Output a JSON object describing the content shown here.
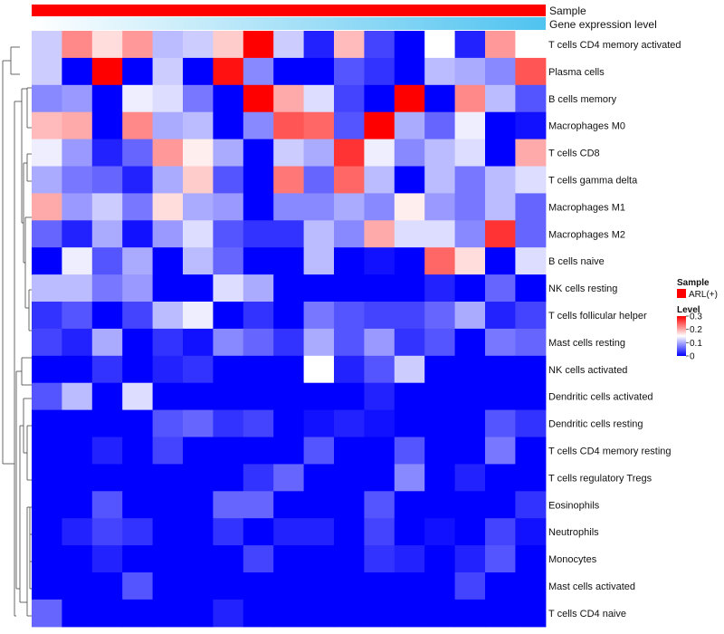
{
  "chart_data": {
    "type": "heatmap",
    "annotations": {
      "sample": {
        "label": "Sample",
        "color": "#ff0000"
      },
      "gene": {
        "label": "Gene expression level",
        "color_low": "#ffffff",
        "color_high": "#4fc3f0"
      }
    },
    "legend": {
      "sample_title": "Sample",
      "sample_entry": "ARL(+)",
      "sample_color": "#ff0000",
      "level_title": "Level",
      "ticks": [
        {
          "value": 0.3,
          "label": "0.3"
        },
        {
          "value": 0.2,
          "label": "0.2"
        },
        {
          "value": 0.1,
          "label": "0.1"
        },
        {
          "value": 0,
          "label": "0"
        }
      ]
    },
    "colors": {
      "low": "#0000ff",
      "mid": "#ffffff",
      "high": "#ff0000"
    },
    "value_range": [
      0,
      0.3
    ],
    "rows": [
      "T cells CD4 memory activated",
      "Plasma cells",
      "B cells memory",
      "Macrophages M0",
      "T cells CD8",
      "T cells gamma delta",
      "Macrophages M1",
      "Macrophages M2",
      "B cells naive",
      "NK cells resting",
      "T cells follicular helper",
      "Mast cells resting",
      "NK cells activated",
      "Dendritic cells activated",
      "Dendritic cells resting",
      "T cells CD4 memory resting",
      "T cells regulatory  Tregs",
      "Eosinophils",
      "Neutrophils",
      "Monocytes",
      "Mast cells activated",
      "T cells CD4 naive"
    ],
    "values": [
      [
        0.12,
        0.22,
        0.17,
        0.21,
        0.11,
        0.12,
        0.18,
        0.3,
        0.12,
        0.02,
        0.19,
        0.04,
        0.0,
        0.15,
        0.02,
        0.21,
        0.15
      ],
      [
        0.12,
        0.0,
        0.3,
        0.0,
        0.12,
        0.0,
        0.29,
        0.08,
        0.0,
        0.0,
        0.05,
        0.03,
        0.0,
        0.11,
        0.1,
        0.08,
        0.25
      ],
      [
        0.08,
        0.09,
        0.0,
        0.14,
        0.13,
        0.07,
        0.0,
        0.3,
        0.2,
        0.13,
        0.04,
        0.0,
        0.3,
        0.0,
        0.22,
        0.11,
        0.05
      ],
      [
        0.19,
        0.2,
        0.0,
        0.22,
        0.1,
        0.11,
        0.0,
        0.08,
        0.25,
        0.24,
        0.05,
        0.3,
        0.1,
        0.06,
        0.14,
        0.0,
        0.01
      ],
      [
        0.14,
        0.09,
        0.02,
        0.06,
        0.21,
        0.16,
        0.1,
        0.0,
        0.12,
        0.1,
        0.27,
        0.14,
        0.08,
        0.11,
        0.13,
        0.0,
        0.2
      ],
      [
        0.1,
        0.07,
        0.06,
        0.02,
        0.1,
        0.18,
        0.05,
        0.0,
        0.23,
        0.06,
        0.24,
        0.11,
        0.0,
        0.11,
        0.07,
        0.11,
        0.13
      ],
      [
        0.2,
        0.09,
        0.12,
        0.07,
        0.17,
        0.1,
        0.09,
        0.0,
        0.08,
        0.08,
        0.1,
        0.08,
        0.16,
        0.09,
        0.07,
        0.11,
        0.06
      ],
      [
        0.06,
        0.02,
        0.1,
        0.01,
        0.09,
        0.13,
        0.05,
        0.03,
        0.03,
        0.11,
        0.08,
        0.2,
        0.13,
        0.13,
        0.08,
        0.27,
        0.06
      ],
      [
        0.0,
        0.14,
        0.05,
        0.1,
        0.0,
        0.11,
        0.06,
        0.0,
        0.0,
        0.11,
        0.0,
        0.01,
        0.0,
        0.24,
        0.17,
        0.0,
        0.13
      ],
      [
        0.11,
        0.11,
        0.07,
        0.09,
        0.0,
        0.0,
        0.13,
        0.1,
        0.0,
        0.0,
        0.0,
        0.0,
        0.0,
        0.02,
        0.0,
        0.06,
        0.0
      ],
      [
        0.03,
        0.05,
        0.0,
        0.04,
        0.11,
        0.14,
        0.0,
        0.03,
        0.0,
        0.07,
        0.05,
        0.04,
        0.04,
        0.06,
        0.1,
        0.02,
        0.04
      ],
      [
        0.04,
        0.02,
        0.1,
        0.0,
        0.03,
        0.01,
        0.08,
        0.06,
        0.03,
        0.1,
        0.05,
        0.09,
        0.03,
        0.05,
        0.0,
        0.07,
        0.06
      ],
      [
        0.0,
        0.0,
        0.03,
        0.0,
        0.02,
        0.03,
        0.0,
        0.0,
        0.0,
        0.15,
        0.02,
        0.05,
        0.12,
        0.0,
        0.0,
        0.0,
        0.0
      ],
      [
        0.05,
        0.11,
        0.0,
        0.13,
        0.0,
        0.0,
        0.0,
        0.0,
        0.0,
        0.0,
        0.0,
        0.02,
        0.0,
        0.0,
        0.0,
        0.0,
        0.0
      ],
      [
        0.0,
        0.0,
        0.0,
        0.0,
        0.05,
        0.06,
        0.03,
        0.04,
        0.0,
        0.01,
        0.02,
        0.01,
        0.0,
        0.0,
        0.0,
        0.05,
        0.03
      ],
      [
        0.0,
        0.0,
        0.02,
        0.0,
        0.04,
        0.0,
        0.0,
        0.0,
        0.0,
        0.05,
        0.0,
        0.0,
        0.05,
        0.0,
        0.0,
        0.07,
        0.0
      ],
      [
        0.0,
        0.0,
        0.0,
        0.0,
        0.0,
        0.0,
        0.0,
        0.03,
        0.06,
        0.0,
        0.0,
        0.0,
        0.08,
        0.0,
        0.02,
        0.0,
        0.0
      ],
      [
        0.0,
        0.0,
        0.05,
        0.0,
        0.0,
        0.0,
        0.06,
        0.06,
        0.0,
        0.0,
        0.0,
        0.05,
        0.0,
        0.0,
        0.0,
        0.0,
        0.03
      ],
      [
        0.0,
        0.02,
        0.04,
        0.03,
        0.0,
        0.0,
        0.03,
        0.0,
        0.02,
        0.02,
        0.0,
        0.04,
        0.0,
        0.01,
        0.0,
        0.04,
        0.01
      ],
      [
        0.0,
        0.0,
        0.02,
        0.0,
        0.0,
        0.0,
        0.0,
        0.04,
        0.0,
        0.0,
        0.0,
        0.03,
        0.02,
        0.0,
        0.02,
        0.05,
        0.0
      ],
      [
        0.0,
        0.0,
        0.0,
        0.05,
        0.0,
        0.0,
        0.0,
        0.0,
        0.0,
        0.0,
        0.0,
        0.0,
        0.0,
        0.0,
        0.04,
        0.0,
        0.0
      ],
      [
        0.06,
        0.0,
        0.0,
        0.0,
        0.0,
        0.0,
        0.02,
        0.0,
        0.0,
        0.0,
        0.0,
        0.0,
        0.0,
        0.0,
        0.0,
        0.0,
        0.0
      ]
    ]
  }
}
